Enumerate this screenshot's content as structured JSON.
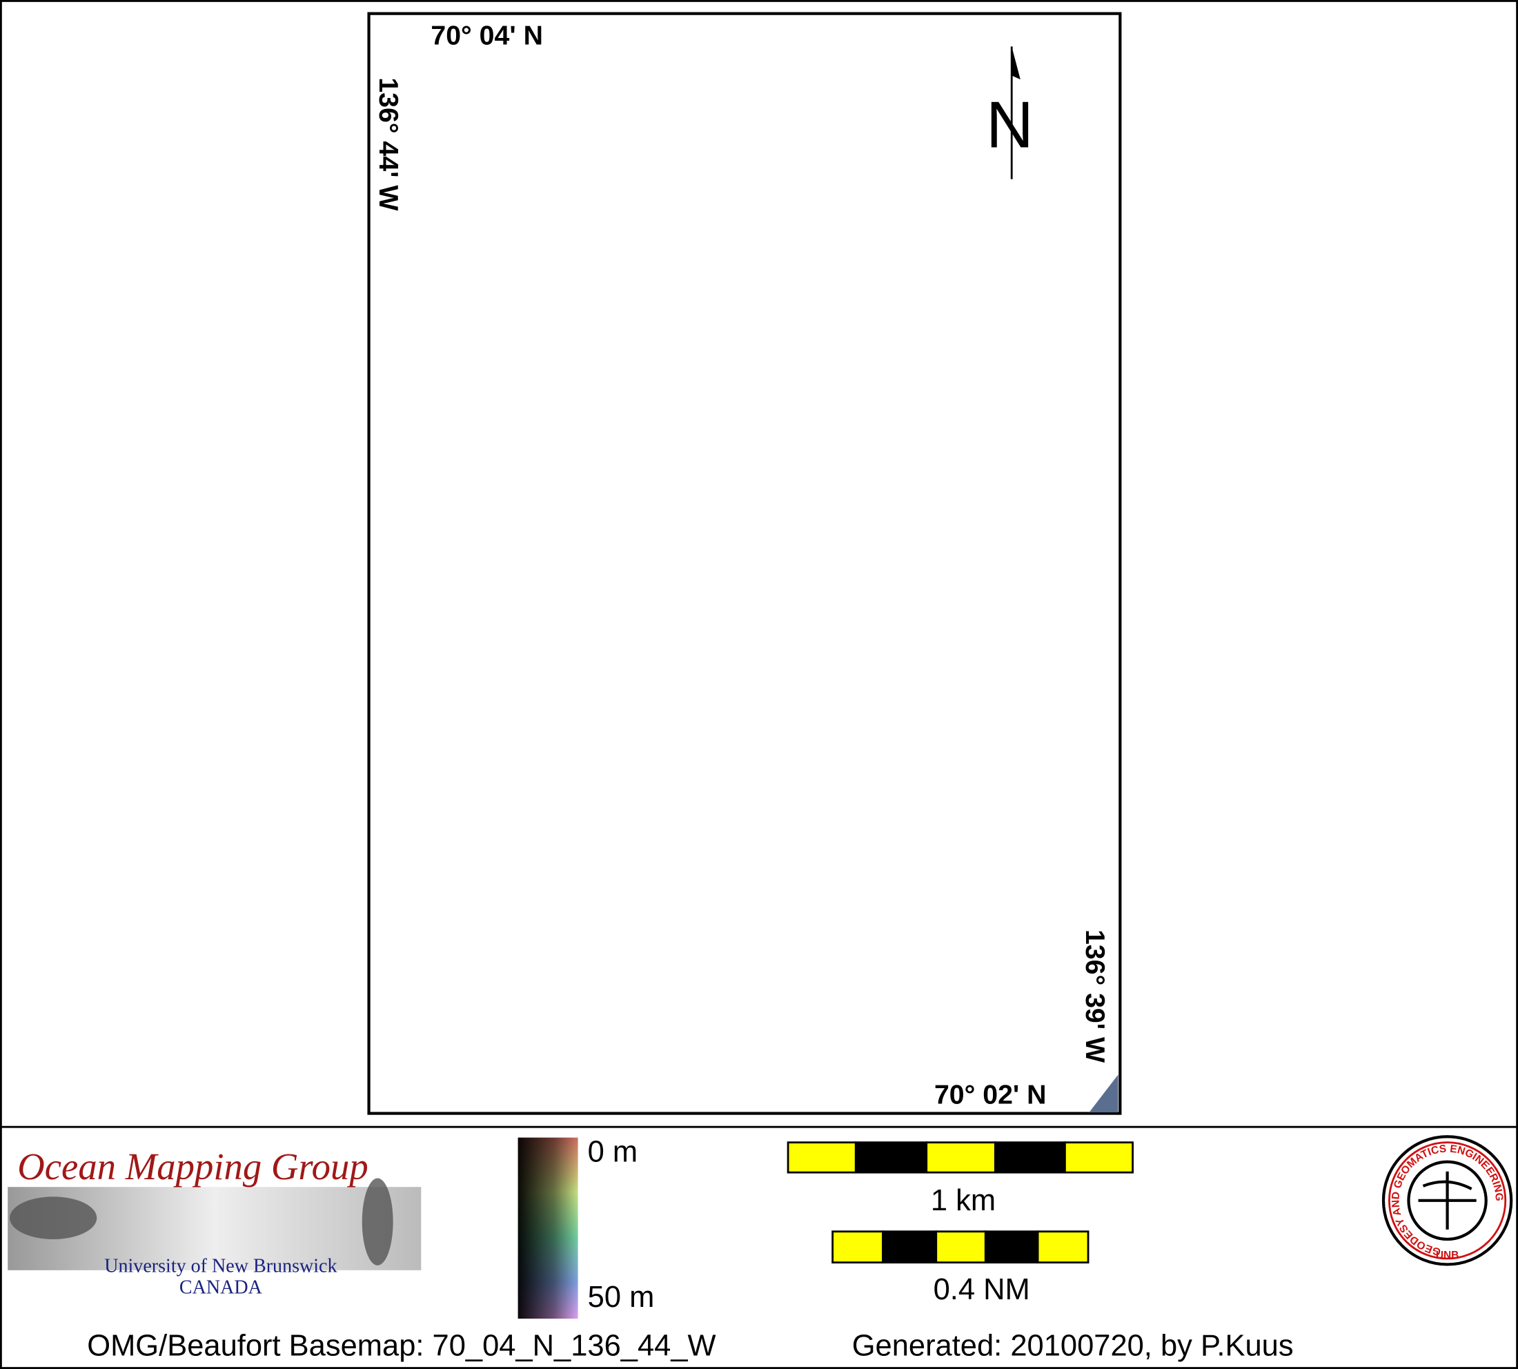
{
  "map": {
    "top_latitude": "70° 04' N",
    "left_longitude": "136° 44' W",
    "north_label": "N",
    "right_longitude": "136° 39' W",
    "bottom_latitude": "70° 02' N"
  },
  "legend": {
    "logo_title": "Ocean Mapping Group",
    "logo_university": "University of New Brunswick",
    "logo_country": "CANADA",
    "depth_min_label": "0 m",
    "depth_max_label": "50 m",
    "scale_km_label": "1 km",
    "scale_nm_label": "0.4 NM",
    "badge_ring_text": "GEODESY AND GEOMATICS ENGINEERING",
    "badge_bottom_text": "UNB"
  },
  "footer": {
    "basemap": "OMG/Beaufort Basemap: 70_04_N_136_44_W",
    "generated": "Generated: 20100720, by P.Kuus"
  }
}
